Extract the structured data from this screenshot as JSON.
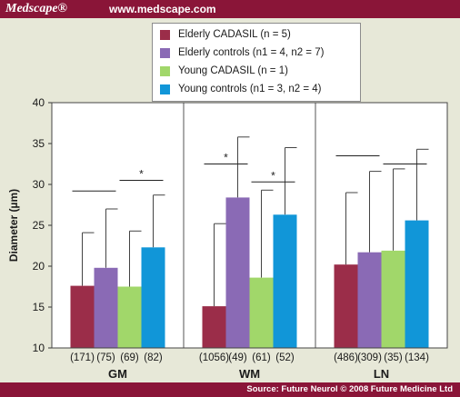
{
  "header": {
    "brand": "Medscape®",
    "site": "www.medscape.com"
  },
  "footer": {
    "source": "Source: Future Neurol © 2008 Future Medicine Ltd"
  },
  "chart_data": {
    "type": "bar",
    "ylabel": "Diameter (µm)",
    "ylim": [
      10,
      40
    ],
    "yticks": [
      10,
      15,
      20,
      25,
      30,
      35,
      40
    ],
    "grid": false,
    "legend_position": "top-center",
    "groups": [
      "GM",
      "WM",
      "LN"
    ],
    "series": [
      {
        "name": "Elderly CADASIL (n = 5)",
        "color": "#9b2d49",
        "values": [
          17.6,
          15.1,
          20.2
        ],
        "error_upper": [
          24.1,
          25.2,
          29.0
        ],
        "n_labels": [
          "(171)",
          "(1056)",
          "(486)"
        ]
      },
      {
        "name": "Elderly controls (n1 = 4, n2 = 7)",
        "color": "#8a6ab5",
        "values": [
          19.8,
          28.4,
          21.7
        ],
        "error_upper": [
          27.0,
          35.8,
          31.6
        ],
        "n_labels": [
          "(75)",
          "(49)",
          "(309)"
        ]
      },
      {
        "name": "Young CADASIL (n = 1)",
        "color": "#a1d76a",
        "values": [
          17.5,
          18.6,
          21.9
        ],
        "error_upper": [
          24.3,
          29.3,
          31.9
        ],
        "n_labels": [
          "(69)",
          "(61)",
          "(35)"
        ]
      },
      {
        "name": "Young controls (n1 = 3, n2 = 4)",
        "color": "#1196d8",
        "values": [
          22.3,
          26.3,
          25.6
        ],
        "error_upper": [
          28.7,
          34.5,
          34.3
        ],
        "n_labels": [
          "(82)",
          "(52)",
          "(134)"
        ]
      }
    ],
    "significance": [
      {
        "group": 0,
        "from": 0,
        "to": 1,
        "y": 29.2,
        "label": ""
      },
      {
        "group": 0,
        "from": 2,
        "to": 3,
        "y": 30.5,
        "label": "*"
      },
      {
        "group": 1,
        "from": 0,
        "to": 1,
        "y": 32.5,
        "label": "*"
      },
      {
        "group": 1,
        "from": 2,
        "to": 3,
        "y": 30.3,
        "label": "*"
      },
      {
        "group": 2,
        "from": 0,
        "to": 1,
        "y": 33.5,
        "label": ""
      },
      {
        "group": 2,
        "from": 2,
        "to": 3,
        "y": 32.5,
        "label": ""
      }
    ]
  }
}
